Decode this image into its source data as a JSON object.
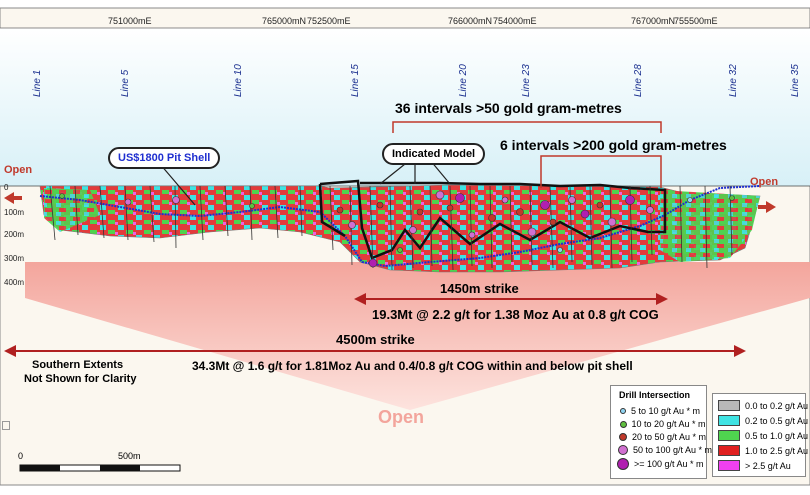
{
  "coords": [
    "751000mE",
    "765000mN",
    "752500mE",
    "766000mN",
    "754000mE",
    "767000mN",
    "755500mE"
  ],
  "lines": [
    "Line 1",
    "Line 5",
    "Line 10",
    "Line 15",
    "Line 20",
    "Line 23",
    "Line 28",
    "Line 32",
    "Line 35"
  ],
  "depths": [
    "0",
    "100m",
    "200m",
    "300m",
    "400m"
  ],
  "labels": {
    "intervals_50": "36 intervals >50 gold gram-metres",
    "intervals_200": "6 intervals >200 gold gram-metres",
    "pit_shell": "US$1800 Pit Shell",
    "indicated": "Indicated Model",
    "open_left": "Open",
    "open_right": "Open",
    "strike_1450": "1450m strike",
    "resource_1450": "19.3Mt @ 2.2 g/t for 1.38 Moz Au at 0.8 g/t COG",
    "strike_4500": "4500m strike",
    "resource_4500": "34.3Mt @ 1.6 g/t for 1.81Moz Au and 0.4/0.8 g/t COG within and below pit shell",
    "southern_1": "Southern Extents",
    "southern_2": "Not Shown for Clarity",
    "open_bottom": "Open",
    "scale_0": "0",
    "scale_500": "500m"
  },
  "legend_drill": {
    "title": "Drill Intersection",
    "items": [
      {
        "label": "5 to 10 g/t Au * m",
        "color": "#8fd3f0"
      },
      {
        "label": "10 to 20 g/t Au * m",
        "color": "#5fbf3f"
      },
      {
        "label": "20 to 50 g/t Au * m",
        "color": "#c0392b"
      },
      {
        "label": "50 to 100 g/t Au * m",
        "color": "#d070d0"
      },
      {
        "label": ">= 100 g/t Au * m",
        "color": "#b020b0"
      }
    ]
  },
  "legend_grade": {
    "items": [
      {
        "label": "0.0 to 0.2 g/t Au",
        "color": "#b8b8b8"
      },
      {
        "label": "0.2 to 0.5 g/t Au",
        "color": "#3fe3e3"
      },
      {
        "label": "0.5 to 1.0 g/t Au",
        "color": "#4fd34f"
      },
      {
        "label": "1.0 to 2.5 g/t Au",
        "color": "#e02020"
      },
      {
        "label": "> 2.5 g/t Au",
        "color": "#f040f0"
      }
    ]
  }
}
